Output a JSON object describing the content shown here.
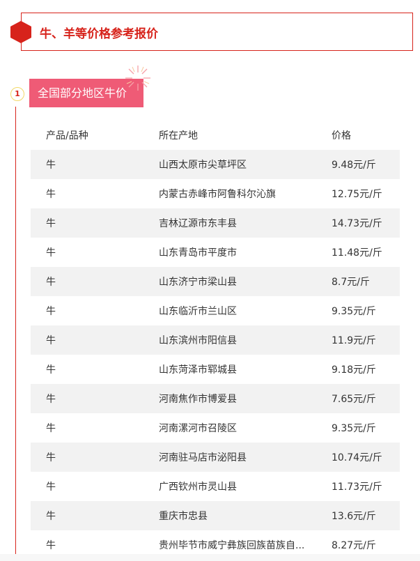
{
  "header": {
    "title": "牛、羊等价格参考报价"
  },
  "section": {
    "number": "1",
    "title": "全国部分地区牛价"
  },
  "table": {
    "columns": [
      "产品/品种",
      "所在产地",
      "价格"
    ],
    "rows": [
      [
        "牛",
        "山西太原市尖草坪区",
        "9.48元/斤"
      ],
      [
        "牛",
        "内蒙古赤峰市阿鲁科尔沁旗",
        "12.75元/斤"
      ],
      [
        "牛",
        "吉林辽源市东丰县",
        "14.73元/斤"
      ],
      [
        "牛",
        "山东青岛市平度市",
        "11.48元/斤"
      ],
      [
        "牛",
        "山东济宁市梁山县",
        "8.7元/斤"
      ],
      [
        "牛",
        "山东临沂市兰山区",
        "9.35元/斤"
      ],
      [
        "牛",
        "山东滨州市阳信县",
        "11.9元/斤"
      ],
      [
        "牛",
        "山东菏泽市郓城县",
        "9.18元/斤"
      ],
      [
        "牛",
        "河南焦作市博爱县",
        "7.65元/斤"
      ],
      [
        "牛",
        "河南漯河市召陵区",
        "9.35元/斤"
      ],
      [
        "牛",
        "河南驻马店市泌阳县",
        "10.74元/斤"
      ],
      [
        "牛",
        "广西钦州市灵山县",
        "11.73元/斤"
      ],
      [
        "牛",
        "重庆市忠县",
        "13.6元/斤"
      ],
      [
        "牛",
        "贵州毕节市威宁彝族回族苗族自...",
        "8.27元/斤"
      ]
    ]
  },
  "colors": {
    "accent": "#d7231b",
    "badge": "#ef5b76",
    "row_alt": "#f2f2f2"
  }
}
